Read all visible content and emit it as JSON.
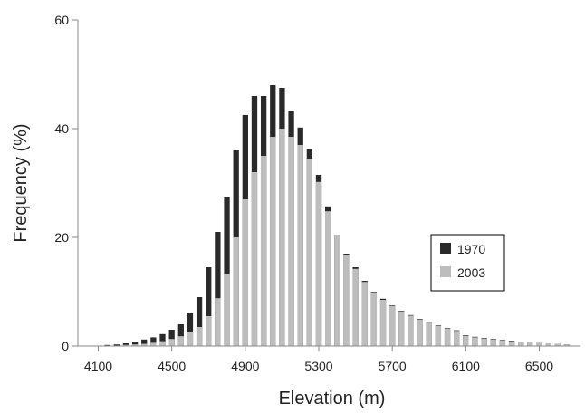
{
  "chart_data": {
    "type": "bar",
    "title": "",
    "xlabel": "Elevation (m)",
    "ylabel": "Frequency (%)",
    "xlim": [
      4100,
      6700
    ],
    "ylim": [
      0,
      60
    ],
    "x_ticks": [
      "4100",
      "4500",
      "4900",
      "5300",
      "5700",
      "6100",
      "6500"
    ],
    "x_tick_values": [
      4100,
      4500,
      4900,
      5300,
      5700,
      6100,
      6500
    ],
    "y_ticks": [
      "0",
      "20",
      "40",
      "60"
    ],
    "y_tick_values": [
      0,
      20,
      40,
      60
    ],
    "grid": false,
    "legend_position": "right",
    "x": [
      4150,
      4200,
      4250,
      4300,
      4350,
      4400,
      4450,
      4500,
      4550,
      4600,
      4650,
      4700,
      4750,
      4800,
      4850,
      4900,
      4950,
      5000,
      5050,
      5100,
      5150,
      5200,
      5250,
      5300,
      5350,
      5400,
      5450,
      5500,
      5550,
      5600,
      5650,
      5700,
      5750,
      5800,
      5850,
      5900,
      5950,
      6000,
      6050,
      6100,
      6150,
      6200,
      6250,
      6300,
      6350,
      6400,
      6450,
      6500,
      6550,
      6600,
      6650
    ],
    "series": [
      {
        "name": "1970",
        "color": "#2a2a2a",
        "values": [
          0.2,
          0.3,
          0.5,
          0.8,
          1.2,
          1.6,
          2.2,
          3.0,
          4.0,
          6.0,
          9.0,
          14.5,
          21.0,
          27.5,
          36.0,
          42.5,
          46.0,
          46.0,
          48.0,
          47.5,
          43.3,
          40.2,
          36.2,
          31.5,
          25.7,
          20.5,
          17.0,
          14.5,
          12.0,
          10.0,
          8.7,
          7.5,
          6.5,
          5.7,
          5.0,
          4.4,
          3.8,
          3.3,
          2.9,
          2.0,
          1.7,
          1.5,
          1.3,
          1.1,
          1.0,
          0.8,
          0.7,
          0.6,
          0.5,
          0.4,
          0.3
        ]
      },
      {
        "name": "2003",
        "color": "#bdbdbd",
        "values": [
          0.1,
          0.1,
          0.2,
          0.3,
          0.4,
          0.6,
          0.9,
          1.3,
          1.8,
          2.5,
          3.5,
          5.5,
          8.8,
          13.2,
          20.0,
          27.0,
          32.0,
          35.0,
          38.5,
          40.0,
          38.5,
          37.0,
          34.5,
          30.2,
          24.8,
          20.5,
          16.8,
          14.2,
          11.8,
          9.9,
          8.5,
          7.4,
          6.4,
          5.6,
          4.9,
          4.3,
          3.7,
          3.2,
          2.8,
          1.9,
          1.6,
          1.4,
          1.2,
          1.0,
          0.9,
          0.8,
          0.7,
          0.6,
          0.5,
          0.4,
          0.3
        ]
      }
    ]
  }
}
